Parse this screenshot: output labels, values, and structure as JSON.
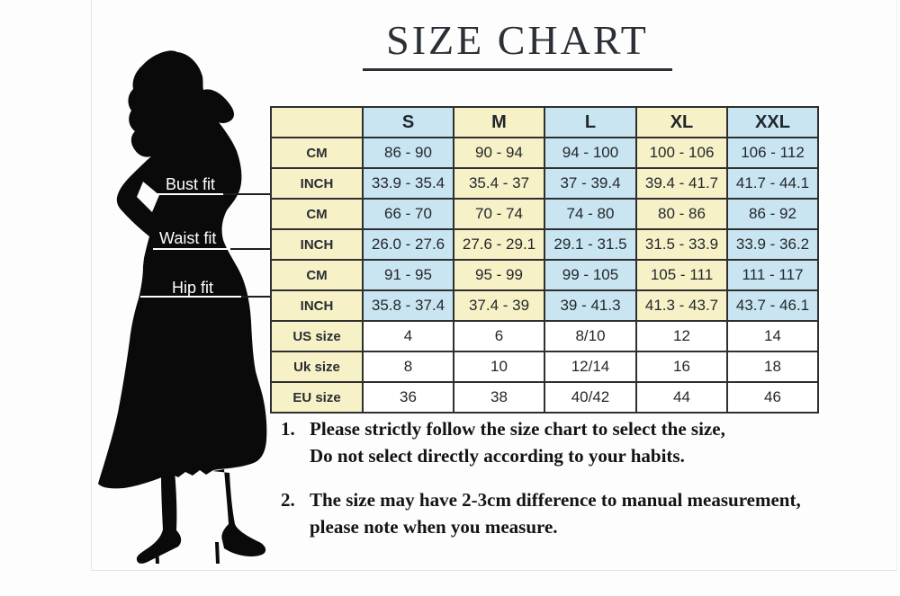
{
  "title": "SIZE CHART",
  "figure": {
    "description": "black silhouette of a woman in a long dress and high heels"
  },
  "fit_labels": [
    {
      "label": "Bust fit"
    },
    {
      "label": "Waist fit"
    },
    {
      "label": "Hip fit"
    }
  ],
  "colors": {
    "cell_yellow": "#f6f1c6",
    "cell_blue": "#c9e5f1",
    "cell_white": "#ffffff",
    "table_border": "#2f2f2f",
    "title_text": "#2b2f36",
    "note_text": "#141414",
    "silhouette": "#0a0a0a"
  },
  "chart_data": {
    "type": "table",
    "title": "SIZE CHART",
    "columns": [
      "",
      "S",
      "M",
      "L",
      "XL",
      "XXL"
    ],
    "rows": [
      {
        "group": "Bust fit",
        "label": "CM",
        "scheme": "striped",
        "values": [
          "86 - 90",
          "90 - 94",
          "94 - 100",
          "100 - 106",
          "106 - 112"
        ]
      },
      {
        "group": "Bust fit",
        "label": "INCH",
        "scheme": "striped",
        "values": [
          "33.9 - 35.4",
          "35.4 - 37",
          "37 - 39.4",
          "39.4 - 41.7",
          "41.7 - 44.1"
        ]
      },
      {
        "group": "Waist fit",
        "label": "CM",
        "scheme": "striped",
        "values": [
          "66 - 70",
          "70 - 74",
          "74 - 80",
          "80 - 86",
          "86 - 92"
        ]
      },
      {
        "group": "Waist fit",
        "label": "INCH",
        "scheme": "striped",
        "values": [
          "26.0 - 27.6",
          "27.6 - 29.1",
          "29.1 - 31.5",
          "31.5 - 33.9",
          "33.9 - 36.2"
        ]
      },
      {
        "group": "Hip fit",
        "label": "CM",
        "scheme": "striped",
        "values": [
          "91 - 95",
          "95 - 99",
          "99 - 105",
          "105 - 111",
          "111 - 117"
        ]
      },
      {
        "group": "Hip fit",
        "label": "INCH",
        "scheme": "striped",
        "values": [
          "35.8 - 37.4",
          "37.4 - 39",
          "39 - 41.3",
          "41.3 - 43.7",
          "43.7 - 46.1"
        ]
      },
      {
        "group": "",
        "label": "US size",
        "scheme": "plain",
        "values": [
          "4",
          "6",
          "8/10",
          "12",
          "14"
        ]
      },
      {
        "group": "",
        "label": "Uk size",
        "scheme": "plain",
        "values": [
          "8",
          "10",
          "12/14",
          "16",
          "18"
        ]
      },
      {
        "group": "",
        "label": "EU size",
        "scheme": "plain",
        "values": [
          "36",
          "38",
          "40/42",
          "44",
          "46"
        ]
      }
    ]
  },
  "notes": [
    {
      "num": "1.",
      "lines": [
        "Please strictly follow the size chart to select the size,",
        "Do not select directly according to your habits."
      ]
    },
    {
      "num": "2.",
      "lines": [
        "The size may have 2-3cm difference  to manual measurement,",
        "please note when you measure."
      ]
    }
  ]
}
